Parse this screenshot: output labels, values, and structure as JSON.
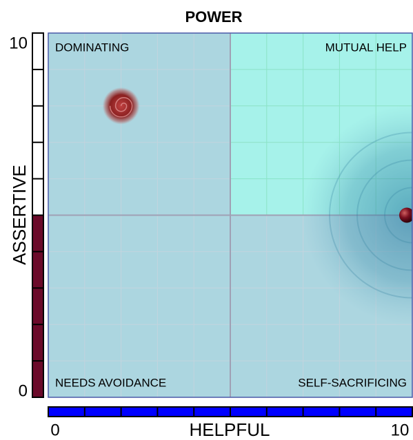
{
  "chart_data": {
    "type": "scatter",
    "title": "POWER",
    "xlabel": "HELPFUL",
    "ylabel": "ASSERTIVE",
    "xlim": [
      0,
      10
    ],
    "ylim": [
      0,
      10
    ],
    "xticks": [
      0,
      10
    ],
    "yticks": [
      0,
      10
    ],
    "grid": true,
    "quadrant_labels": {
      "top_left": "DOMINATING",
      "top_right": "MUTUAL HELP",
      "bottom_left": "NEEDS AVOIDANCE",
      "bottom_right": "SELF-SACRIFICING"
    },
    "x": [
      10
    ],
    "values": [
      5
    ],
    "color": "#6b0a2a",
    "x_bar_color": "#0000ff",
    "y_bar_color": "#6b0a2a",
    "target": {
      "x": 2,
      "y": 8
    }
  }
}
